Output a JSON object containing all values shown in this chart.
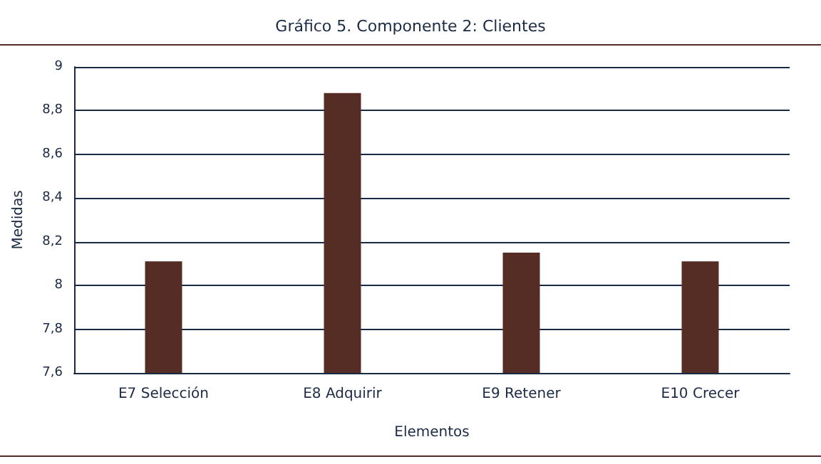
{
  "chart_data": {
    "type": "bar",
    "title": "Gráfico 5. Componente 2: Clientes",
    "xlabel": "Elementos",
    "ylabel": "Medidas",
    "categories": [
      "E7 Selección",
      "E8 Adquirir",
      "E9 Retener",
      "E10 Crecer"
    ],
    "values": [
      8.11,
      8.88,
      8.15,
      8.11
    ],
    "color": "#552d24",
    "ylim": [
      7.6,
      9
    ],
    "yticks": [
      {
        "value": 7.6,
        "label": "7,6"
      },
      {
        "value": 7.8,
        "label": "7,8"
      },
      8,
      {
        "value": 8.2,
        "label": "8,2"
      },
      {
        "value": 8.4,
        "label": "8,4"
      },
      {
        "value": 8.6,
        "label": "8,6"
      },
      {
        "value": 8.8,
        "label": "8,8"
      },
      9
    ],
    "grid": "y"
  }
}
